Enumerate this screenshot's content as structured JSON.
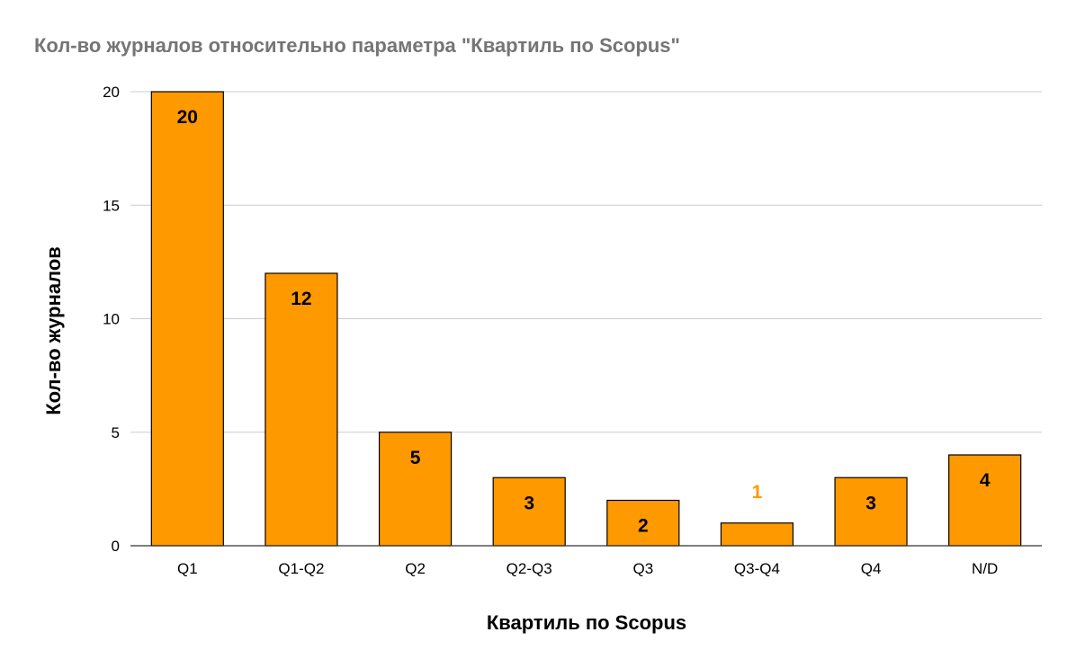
{
  "chart_data": {
    "type": "bar",
    "title": "Кол-во журналов относительно параметра \"Квартиль по Scopus\"",
    "xlabel": "Квартиль по Scopus",
    "ylabel": "Кол-во журналов",
    "categories": [
      "Q1",
      "Q1-Q2",
      "Q2",
      "Q2-Q3",
      "Q3",
      "Q3-Q4",
      "Q4",
      "N/D"
    ],
    "values": [
      20,
      12,
      5,
      3,
      2,
      1,
      3,
      4
    ],
    "ylim": [
      0,
      20
    ],
    "yticks": [
      "0",
      "5",
      "10",
      "15",
      "20"
    ],
    "grid": true,
    "bar_color": "#ff9900",
    "label_color": "#000000",
    "outside_label_color": "#ff9900"
  }
}
